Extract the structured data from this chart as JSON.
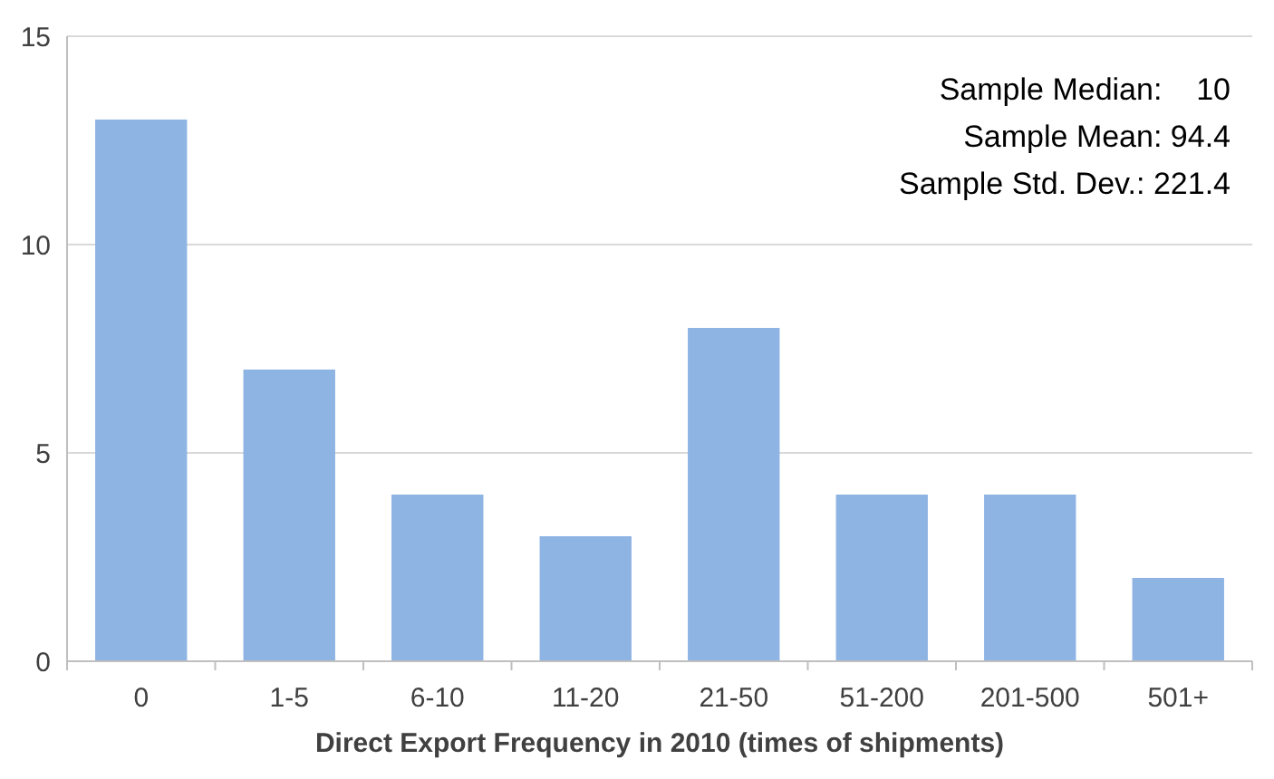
{
  "chart_data": {
    "type": "bar",
    "xlabel": "Direct Export Frequency in 2010 (times of shipments)",
    "categories": [
      "0",
      "1-5",
      "6-10",
      "11-20",
      "21-50",
      "51-200",
      "201-500",
      "501+"
    ],
    "values": [
      13,
      7,
      4,
      3,
      8,
      4,
      4,
      2
    ],
    "color": "#8eb4e3",
    "ylim": [
      0,
      15
    ],
    "yticks": [
      0,
      5,
      10,
      15
    ],
    "grid": "y",
    "annotations": [
      "Sample Median:    10",
      "Sample Mean: 94.4",
      "Sample Std. Dev.: 221.4"
    ]
  }
}
